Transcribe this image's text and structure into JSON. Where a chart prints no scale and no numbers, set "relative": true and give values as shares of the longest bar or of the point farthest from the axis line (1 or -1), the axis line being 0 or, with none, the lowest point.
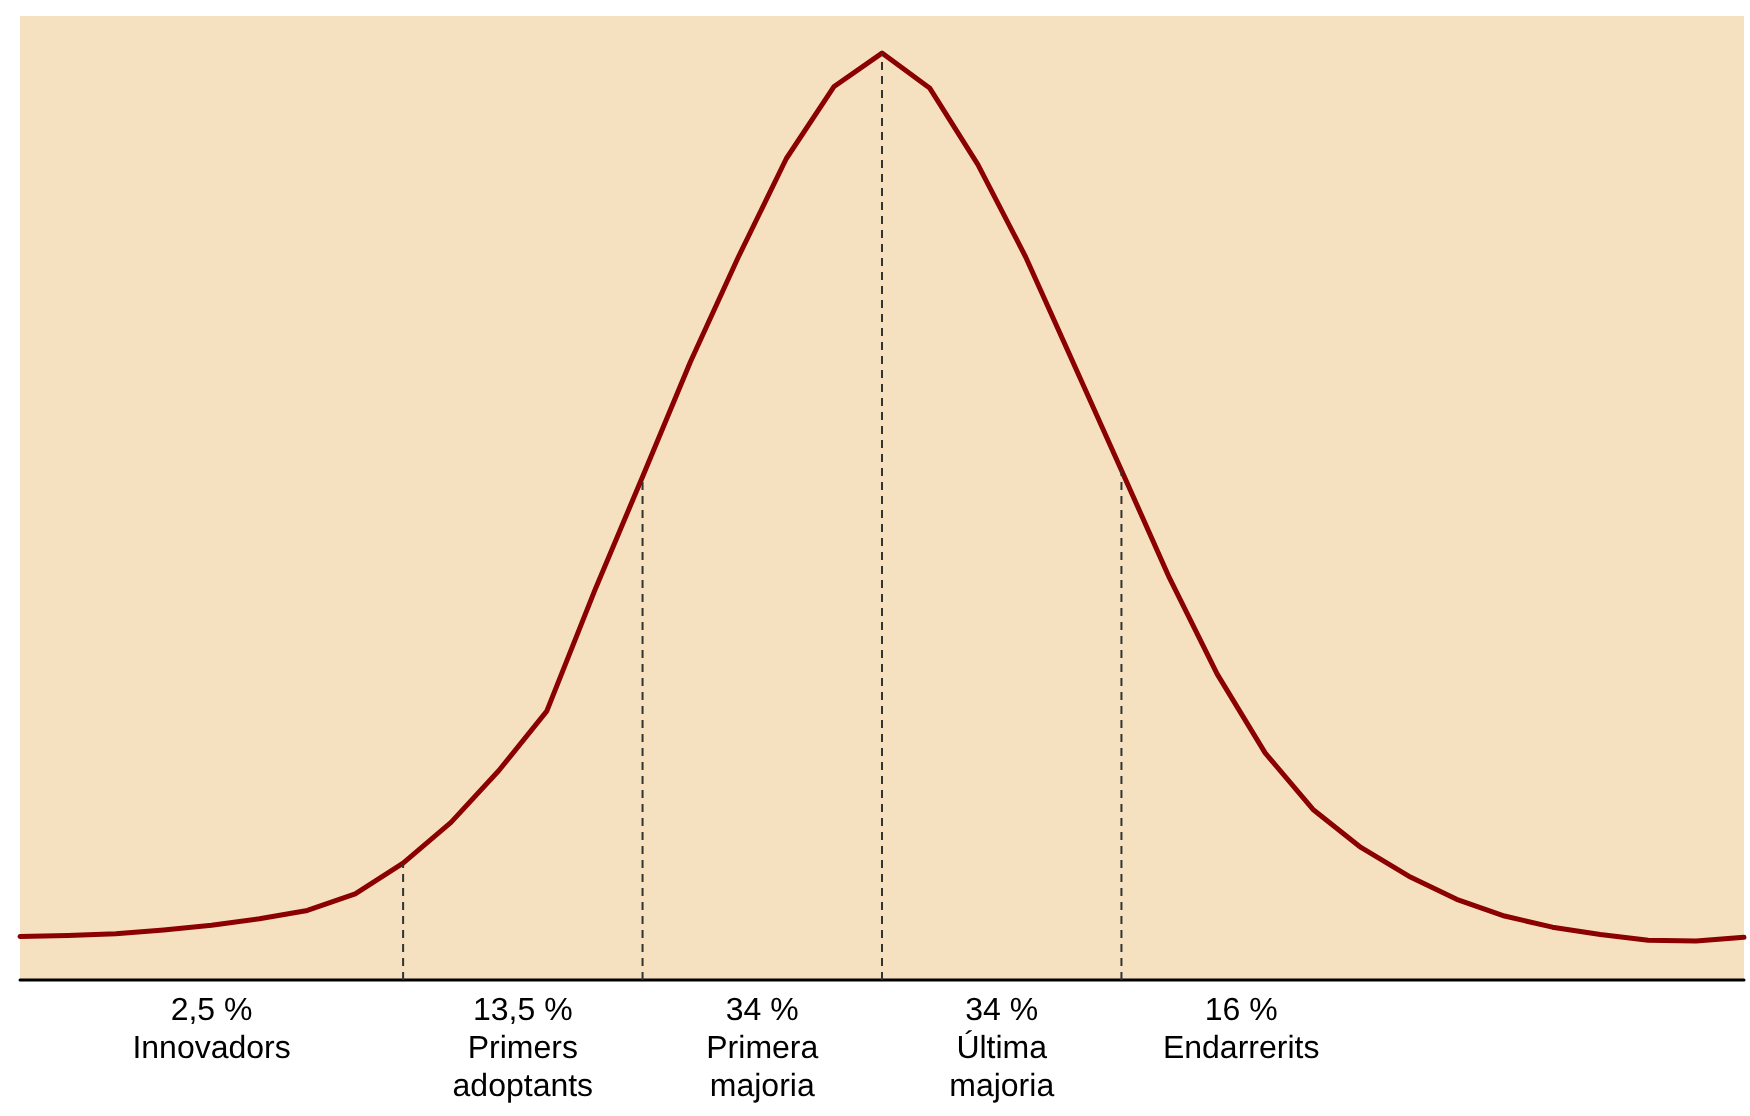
{
  "chart_data": {
    "type": "line",
    "relative": true,
    "marker": "none",
    "line_style": "solid",
    "categories": [
      null,
      null,
      null,
      null,
      null,
      null,
      null,
      null,
      null,
      null,
      null,
      null,
      null,
      null,
      null,
      null,
      null,
      null,
      null,
      null,
      null,
      null,
      null,
      null,
      null,
      null,
      null,
      null,
      null,
      null,
      null,
      null,
      null,
      null,
      null,
      null,
      null
    ],
    "series": [
      {
        "color": "#8b0000",
        "values": [
          0.047,
          0.048,
          0.05,
          0.054,
          0.059,
          0.066,
          0.075,
          0.093,
          0.126,
          0.17,
          0.226,
          0.29,
          0.42,
          0.543,
          0.667,
          0.78,
          0.886,
          0.964,
          1,
          0.962,
          0.88,
          0.78,
          0.665,
          0.55,
          0.434,
          0.33,
          0.245,
          0.184,
          0.143,
          0.112,
          0.087,
          0.069,
          0.057,
          0.049,
          0.043,
          0.042,
          0.046
        ]
      }
    ],
    "annotations": [
      "2,5 %\nInnovadors",
      "13,5 %\nPrimers\nadoptants",
      "34 %\nPrimera\nmajoria",
      "34 %\nÚltima\nmajoria",
      "16 %\nEndarrerits"
    ]
  }
}
